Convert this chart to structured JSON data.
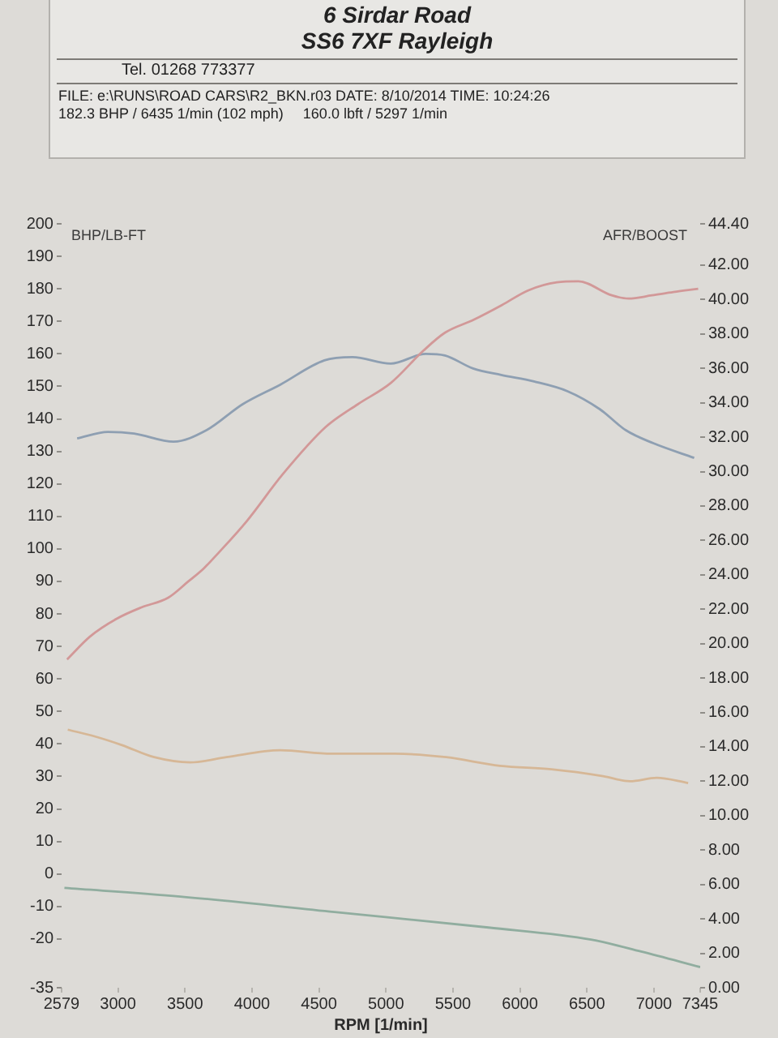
{
  "chart_data": {
    "type": "line",
    "title": "6 Sirdar Road",
    "subtitle": "SS6 7XF Rayleigh",
    "xlabel": "RPM [1/min]",
    "ylabel": "BHP/LB-FT",
    "y2label": "AFR/BOOST",
    "annotations": [
      "Tel. 01268 773377",
      "FILE: e:\\RUNS\\ROAD CARS\\R2_BKN.r03 DATE: 8/10/2014 TIME: 10:24:26",
      "182.3 BHP / 6435 1/min (102 mph)",
      "160.0 lbft / 5297 1/min"
    ],
    "xlim": [
      2579,
      7345
    ],
    "xticks": [
      2579,
      3000,
      3500,
      4000,
      4500,
      5000,
      5500,
      6000,
      6500,
      7000,
      7345
    ],
    "ylim": [
      -35,
      200
    ],
    "yticks": [
      -35,
      -20,
      -10,
      0,
      10,
      20,
      30,
      40,
      50,
      60,
      70,
      80,
      90,
      100,
      110,
      120,
      130,
      140,
      150,
      160,
      170,
      180,
      190,
      200
    ],
    "y2lim": [
      0,
      44.4
    ],
    "y2ticks": [
      {
        "value": 0,
        "label": "0.00"
      },
      {
        "value": 2,
        "label": "2.00"
      },
      {
        "value": 4,
        "label": "4.00"
      },
      {
        "value": 6,
        "label": "6.00"
      },
      {
        "value": 8,
        "label": "8.00"
      },
      {
        "value": 10,
        "label": "10.00"
      },
      {
        "value": 12,
        "label": "12.00"
      },
      {
        "value": 14,
        "label": "14.00"
      },
      {
        "value": 16,
        "label": "16.00"
      },
      {
        "value": 18,
        "label": "18.00"
      },
      {
        "value": 20,
        "label": "20.00"
      },
      {
        "value": 22,
        "label": "22.00"
      },
      {
        "value": 24,
        "label": "24.00"
      },
      {
        "value": 26,
        "label": "26.00"
      },
      {
        "value": 28,
        "label": "28.00"
      },
      {
        "value": 30,
        "label": "30.00"
      },
      {
        "value": 32,
        "label": "32.00"
      },
      {
        "value": 34,
        "label": "34.00"
      },
      {
        "value": 36,
        "label": "36.00"
      },
      {
        "value": 38,
        "label": "38.00"
      },
      {
        "value": 40,
        "label": "40.00"
      },
      {
        "value": 42,
        "label": "42.00"
      },
      {
        "value": 44.4,
        "label": "44.40"
      }
    ],
    "series": [
      {
        "color": "#d29898",
        "x": [
          2620,
          2790,
          2990,
          3175,
          3375,
          3525,
          3640,
          3755,
          3960,
          4230,
          4550,
          4790,
          5035,
          5280,
          5440,
          5655,
          5865,
          6060,
          6275,
          6435,
          6685,
          6810,
          6985,
          7145,
          7330
        ],
        "values": [
          66,
          73,
          78.5,
          82,
          85,
          90,
          94,
          99,
          108.5,
          123,
          137.5,
          144.5,
          151,
          161,
          166.5,
          170.5,
          175,
          179.5,
          182,
          182.3,
          178,
          177,
          178,
          179,
          180
        ]
      },
      {
        "color": "#8e9fb2",
        "x": [
          2695,
          2925,
          3120,
          3415,
          3660,
          3930,
          4210,
          4540,
          4750,
          5035,
          5297,
          5440,
          5650,
          5860,
          6105,
          6355,
          6595,
          6790,
          6995,
          7300
        ],
        "values": [
          134,
          136,
          135.5,
          133,
          136.5,
          144.5,
          150.5,
          158,
          159,
          157,
          160,
          159.5,
          155.5,
          153.5,
          151.5,
          148.5,
          143,
          136.5,
          132.5,
          128
        ]
      },
      {
        "color": "#d6b796",
        "axis": "y2",
        "x": [
          2625,
          2830,
          3030,
          3270,
          3540,
          3810,
          4210,
          4595,
          5065,
          5450,
          5850,
          6235,
          6620,
          6820,
          7020,
          7255
        ],
        "values": [
          15.0,
          14.6,
          14.1,
          13.4,
          13.1,
          13.4,
          13.8,
          13.6,
          13.6,
          13.4,
          12.9,
          12.7,
          12.3,
          12.0,
          12.2,
          11.9
        ]
      },
      {
        "color": "#90ad9f",
        "axis": "y2",
        "x": [
          2600,
          3465,
          4615,
          5765,
          6530,
          6905,
          7345
        ],
        "values": [
          5.8,
          5.3,
          4.4,
          3.5,
          2.8,
          2.1,
          1.2
        ]
      }
    ]
  }
}
